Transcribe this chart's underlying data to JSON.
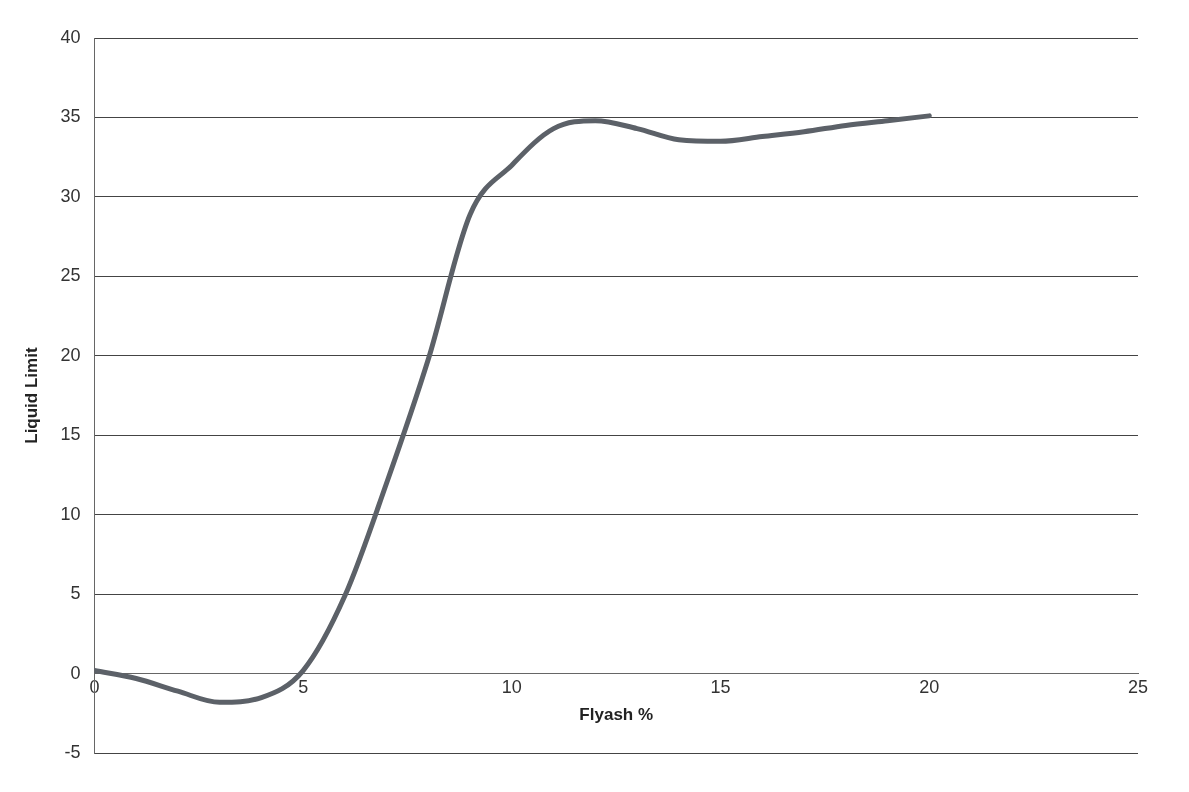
{
  "chart_data": {
    "type": "line",
    "xlabel": "Flyash %",
    "ylabel": "Liquid Limit",
    "x": [
      0,
      1,
      2,
      3,
      4,
      5,
      6,
      7,
      8,
      9,
      10,
      11,
      12,
      13,
      14,
      15,
      16,
      17,
      18,
      19,
      20
    ],
    "series": [
      {
        "color": "#5c6168",
        "values": [
          0.2,
          -0.3,
          -1.1,
          -1.8,
          -1.5,
          0.2,
          4.9,
          12,
          19.8,
          28.9,
          32,
          34.3,
          34.8,
          34.3,
          33.6,
          33.5,
          33.8,
          34.1,
          34.5,
          34.8,
          35.1
        ]
      }
    ],
    "xlim": [
      0,
      25
    ],
    "xticks": [
      0,
      5,
      10,
      15,
      20,
      25
    ],
    "ylim": [
      -5,
      40
    ],
    "yticks": [
      -5,
      0,
      5,
      10,
      15,
      20,
      25,
      30,
      35,
      40
    ],
    "grid": "y",
    "legend": false,
    "marker": "none",
    "line_style": "solid"
  }
}
